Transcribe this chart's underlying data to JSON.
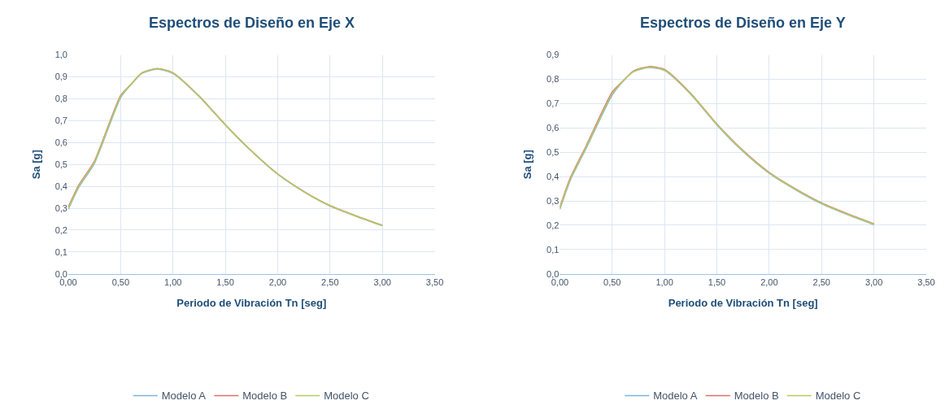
{
  "chart_data": [
    {
      "type": "line",
      "title": "Espectros de Diseño en Eje X",
      "xlabel": "Periodo de Vibración Tn [seg]",
      "ylabel": "Sa [g]",
      "x": [
        0,
        0.1,
        0.25,
        0.5,
        0.6,
        0.7,
        0.85,
        1.0,
        1.25,
        1.5,
        1.75,
        2.0,
        2.25,
        2.5,
        2.75,
        3.0
      ],
      "series": [
        {
          "name": "Modelo A",
          "color": "#7fb2e0",
          "values": [
            0.295,
            0.395,
            0.505,
            0.805,
            0.865,
            0.915,
            0.935,
            0.915,
            0.81,
            0.68,
            0.56,
            0.455,
            0.375,
            0.31,
            0.263,
            0.22
          ]
        },
        {
          "name": "Modelo B",
          "color": "#e07070",
          "values": [
            0.305,
            0.405,
            0.515,
            0.815,
            0.866,
            0.917,
            0.938,
            0.918,
            0.812,
            0.682,
            0.562,
            0.457,
            0.377,
            0.312,
            0.265,
            0.222
          ]
        },
        {
          "name": "Modelo C",
          "color": "#b5cc60",
          "values": [
            0.3,
            0.4,
            0.51,
            0.81,
            0.866,
            0.917,
            0.937,
            0.917,
            0.811,
            0.681,
            0.561,
            0.456,
            0.376,
            0.311,
            0.264,
            0.221
          ]
        }
      ],
      "xlim": [
        0,
        3.5
      ],
      "xticks": [
        {
          "value": 0,
          "label": "0,00"
        },
        {
          "value": 0.5,
          "label": "0,50"
        },
        {
          "value": 1,
          "label": "1,00"
        },
        {
          "value": 1.5,
          "label": "1,50"
        },
        {
          "value": 2,
          "label": "2,00"
        },
        {
          "value": 2.5,
          "label": "2,50"
        },
        {
          "value": 3,
          "label": "3,00"
        },
        {
          "value": 3.5,
          "label": "3,50"
        }
      ],
      "ylim": [
        0,
        1.0
      ],
      "yticks": [
        {
          "value": 0,
          "label": "0,0"
        },
        {
          "value": 0.1,
          "label": "0,1"
        },
        {
          "value": 0.2,
          "label": "0,2"
        },
        {
          "value": 0.3,
          "label": "0,3"
        },
        {
          "value": 0.4,
          "label": "0,4"
        },
        {
          "value": 0.5,
          "label": "0,5"
        },
        {
          "value": 0.6,
          "label": "0,6"
        },
        {
          "value": 0.7,
          "label": "0,7"
        },
        {
          "value": 0.8,
          "label": "0,8"
        },
        {
          "value": 0.9,
          "label": "0,9"
        },
        {
          "value": 1.0,
          "label": "1,0"
        }
      ],
      "grid": true,
      "legend": "bottom",
      "marker": "none",
      "line_style": "solid"
    },
    {
      "type": "line",
      "title": "Espectros de Diseño en Eje Y",
      "xlabel": "Periodo de Vibración Tn [seg]",
      "ylabel": "Sa [g]",
      "x": [
        0,
        0.1,
        0.25,
        0.5,
        0.6,
        0.7,
        0.85,
        1.0,
        1.25,
        1.5,
        1.75,
        2.0,
        2.25,
        2.5,
        2.75,
        3.0
      ],
      "series": [
        {
          "name": "Modelo A",
          "color": "#7fb2e0",
          "values": [
            0.265,
            0.385,
            0.515,
            0.735,
            0.79,
            0.83,
            0.848,
            0.836,
            0.738,
            0.612,
            0.503,
            0.413,
            0.346,
            0.288,
            0.243,
            0.202
          ]
        },
        {
          "name": "Modelo B",
          "color": "#e07070",
          "values": [
            0.275,
            0.395,
            0.525,
            0.747,
            0.792,
            0.833,
            0.852,
            0.84,
            0.742,
            0.616,
            0.507,
            0.417,
            0.35,
            0.292,
            0.247,
            0.206
          ]
        },
        {
          "name": "Modelo C",
          "color": "#b5cc60",
          "values": [
            0.27,
            0.39,
            0.52,
            0.741,
            0.791,
            0.831,
            0.85,
            0.838,
            0.74,
            0.614,
            0.505,
            0.415,
            0.348,
            0.29,
            0.245,
            0.204
          ]
        }
      ],
      "xlim": [
        0,
        3.5
      ],
      "xticks": [
        {
          "value": 0,
          "label": "0,00"
        },
        {
          "value": 0.5,
          "label": "0,50"
        },
        {
          "value": 1,
          "label": "1,00"
        },
        {
          "value": 1.5,
          "label": "1,50"
        },
        {
          "value": 2,
          "label": "2,00"
        },
        {
          "value": 2.5,
          "label": "2,50"
        },
        {
          "value": 3,
          "label": "3,00"
        },
        {
          "value": 3.5,
          "label": "3,50"
        }
      ],
      "ylim": [
        0,
        0.9
      ],
      "yticks": [
        {
          "value": 0,
          "label": "0,0"
        },
        {
          "value": 0.1,
          "label": "0,1"
        },
        {
          "value": 0.2,
          "label": "0,2"
        },
        {
          "value": 0.3,
          "label": "0,3"
        },
        {
          "value": 0.4,
          "label": "0,4"
        },
        {
          "value": 0.5,
          "label": "0,5"
        },
        {
          "value": 0.6,
          "label": "0,6"
        },
        {
          "value": 0.7,
          "label": "0,7"
        },
        {
          "value": 0.8,
          "label": "0,8"
        },
        {
          "value": 0.9,
          "label": "0,9"
        }
      ],
      "grid": true,
      "legend": "bottom",
      "marker": "none",
      "line_style": "solid"
    }
  ]
}
